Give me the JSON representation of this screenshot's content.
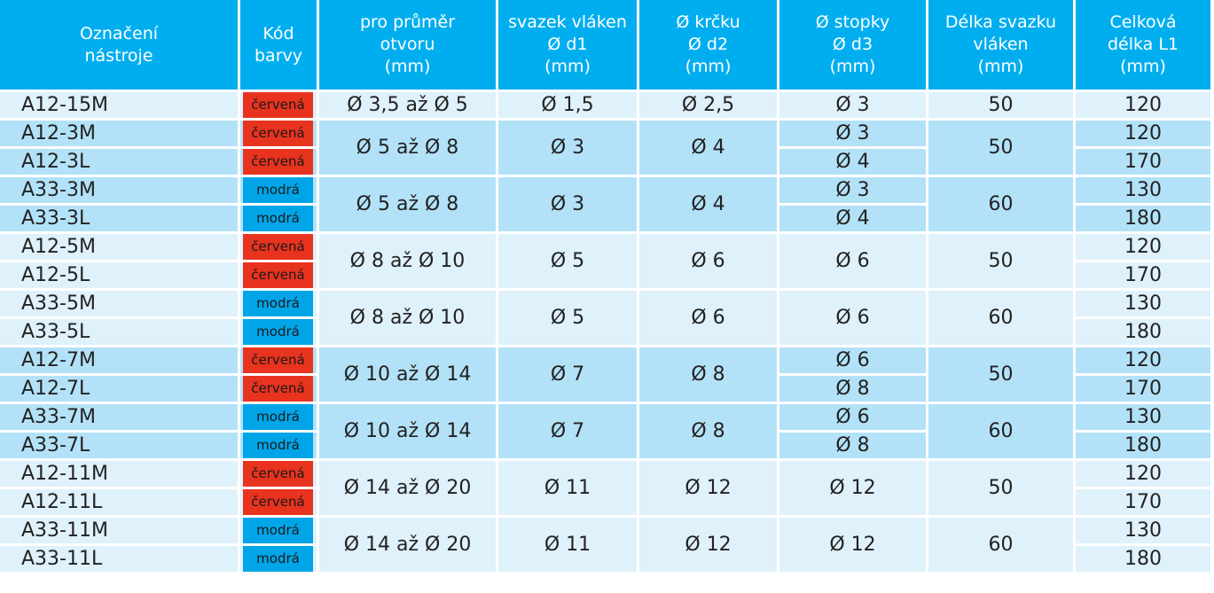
{
  "colors": {
    "header_bg": "#00aeef",
    "row_dark": "#b3e2f8",
    "row_light": "#dff1fb",
    "badge_red": "#e8331f",
    "badge_blue": "#00a5e8"
  },
  "header": {
    "col1": [
      "Označení",
      "nástroje"
    ],
    "col2": [
      "Kód",
      "barvy"
    ],
    "col3": [
      "pro průměr",
      "otvoru",
      "(mm)"
    ],
    "col4": [
      "svazek vláken",
      "Ø d1",
      "(mm)"
    ],
    "col5": [
      "Ø krčku",
      "Ø d2",
      "(mm)"
    ],
    "col6": [
      "Ø stopky",
      "Ø d3",
      "(mm)"
    ],
    "col7": [
      "Délka svazku",
      "vláken",
      "(mm)"
    ],
    "col8": [
      "Celková",
      "délka L1",
      "(mm)"
    ]
  },
  "rows": [
    {
      "code": "A12-15M",
      "color": "červená",
      "diameter": "Ø 3,5 až Ø 5",
      "d1": "Ø 1,5",
      "d2": "Ø 2,5",
      "d3": "Ø 3",
      "fiber_length": "50",
      "total_length": "120"
    },
    {
      "code": "A12-3M",
      "color": "červená",
      "diameter": "Ø 5 až Ø 8",
      "d1": "Ø 3",
      "d2": "Ø 4",
      "d3": "Ø 3",
      "fiber_length": "50",
      "total_length": "120"
    },
    {
      "code": "A12-3L",
      "color": "červená",
      "d3": "Ø 4",
      "total_length": "170"
    },
    {
      "code": "A33-3M",
      "color": "modrá",
      "diameter": "Ø 5 až Ø 8",
      "d1": "Ø 3",
      "d2": "Ø 4",
      "d3": "Ø 3",
      "fiber_length": "60",
      "total_length": "130"
    },
    {
      "code": "A33-3L",
      "color": "modrá",
      "d3": "Ø 4",
      "total_length": "180"
    },
    {
      "code": "A12-5M",
      "color": "červená",
      "diameter": "Ø 8 až Ø 10",
      "d1": "Ø 5",
      "d2": "Ø 6",
      "d3": "Ø 6",
      "fiber_length": "50",
      "total_length": "120"
    },
    {
      "code": "A12-5L",
      "color": "červená",
      "total_length": "170"
    },
    {
      "code": "A33-5M",
      "color": "modrá",
      "diameter": "Ø 8 až Ø 10",
      "d1": "Ø 5",
      "d2": "Ø 6",
      "d3": "Ø 6",
      "fiber_length": "60",
      "total_length": "130"
    },
    {
      "code": "A33-5L",
      "color": "modrá",
      "total_length": "180"
    },
    {
      "code": "A12-7M",
      "color": "červená",
      "diameter": "Ø 10 až Ø 14",
      "d1": "Ø 7",
      "d2": "Ø 8",
      "d3": "Ø 6",
      "fiber_length": "50",
      "total_length": "120"
    },
    {
      "code": "A12-7L",
      "color": "červená",
      "d3": "Ø 8",
      "total_length": "170"
    },
    {
      "code": "A33-7M",
      "color": "modrá",
      "diameter": "Ø 10 až Ø 14",
      "d1": "Ø 7",
      "d2": "Ø 8",
      "d3": "Ø 6",
      "fiber_length": "60",
      "total_length": "130"
    },
    {
      "code": "A33-7L",
      "color": "modrá",
      "d3": "Ø 8",
      "total_length": "180"
    },
    {
      "code": "A12-11M",
      "color": "červená",
      "diameter": "Ø 14 až Ø 20",
      "d1": "Ø 11",
      "d2": "Ø 12",
      "d3": "Ø 12",
      "fiber_length": "50",
      "total_length": "120"
    },
    {
      "code": "A12-11L",
      "color": "červená",
      "total_length": "170"
    },
    {
      "code": "A33-11M",
      "color": "modrá",
      "diameter": "Ø 14 až Ø 20",
      "d1": "Ø 11",
      "d2": "Ø 12",
      "d3": "Ø 12",
      "fiber_length": "60",
      "total_length": "130"
    },
    {
      "code": "A33-11L",
      "color": "modrá",
      "total_length": "180"
    }
  ]
}
